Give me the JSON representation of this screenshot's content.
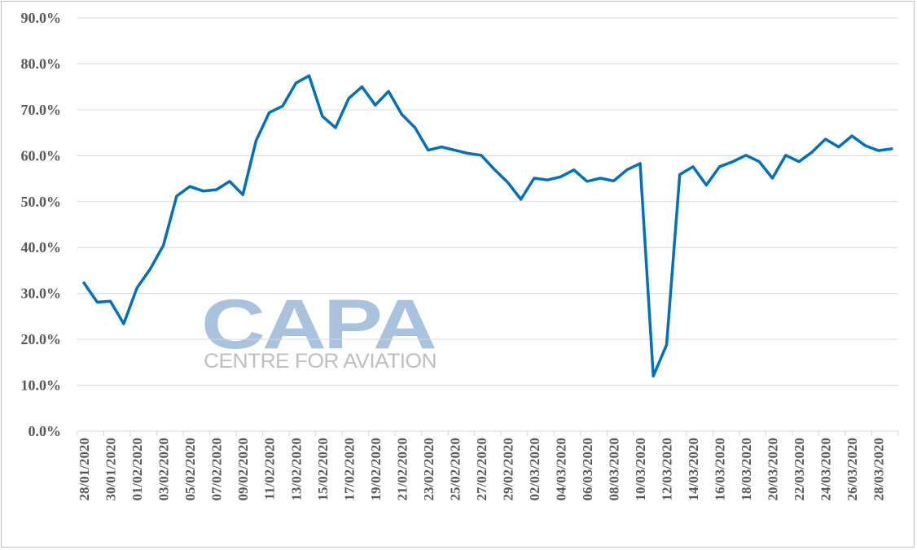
{
  "watermark": {
    "brand": "CAPA",
    "tagline": "CENTRE FOR AVIATION"
  },
  "chart_data": {
    "type": "line",
    "title": "",
    "xlabel": "",
    "ylabel": "",
    "ylim": [
      0,
      90
    ],
    "y_ticks": [
      "0.0%",
      "10.0%",
      "20.0%",
      "30.0%",
      "40.0%",
      "50.0%",
      "60.0%",
      "70.0%",
      "80.0%",
      "90.0%"
    ],
    "grid": "horizontal",
    "legend": "none",
    "line_color": "#0070c0",
    "x": [
      "28/01/2020",
      "29/01/2020",
      "30/01/2020",
      "31/01/2020",
      "01/02/2020",
      "02/02/2020",
      "03/02/2020",
      "04/02/2020",
      "05/02/2020",
      "06/02/2020",
      "07/02/2020",
      "08/02/2020",
      "09/02/2020",
      "10/02/2020",
      "11/02/2020",
      "12/02/2020",
      "13/02/2020",
      "14/02/2020",
      "15/02/2020",
      "16/02/2020",
      "17/02/2020",
      "18/02/2020",
      "19/02/2020",
      "20/02/2020",
      "21/02/2020",
      "22/02/2020",
      "23/02/2020",
      "24/02/2020",
      "25/02/2020",
      "26/02/2020",
      "27/02/2020",
      "28/02/2020",
      "29/02/2020",
      "01/03/2020",
      "02/03/2020",
      "03/03/2020",
      "04/03/2020",
      "05/03/2020",
      "06/03/2020",
      "07/03/2020",
      "08/03/2020",
      "09/03/2020",
      "10/03/2020",
      "11/03/2020",
      "12/03/2020",
      "13/03/2020",
      "14/03/2020",
      "15/03/2020",
      "16/03/2020",
      "17/03/2020",
      "18/03/2020",
      "19/03/2020",
      "20/03/2020",
      "21/03/2020",
      "22/03/2020",
      "23/03/2020",
      "24/03/2020",
      "25/03/2020",
      "26/03/2020",
      "27/03/2020",
      "28/03/2020",
      "29/03/2020"
    ],
    "x_tick_labels": [
      "28/01/2020",
      "30/01/2020",
      "01/02/2020",
      "03/02/2020",
      "05/02/2020",
      "07/02/2020",
      "09/02/2020",
      "11/02/2020",
      "13/02/2020",
      "15/02/2020",
      "17/02/2020",
      "19/02/2020",
      "21/02/2020",
      "23/02/2020",
      "25/02/2020",
      "27/02/2020",
      "29/02/2020",
      "02/03/2020",
      "04/03/2020",
      "06/03/2020",
      "08/03/2020",
      "10/03/2020",
      "12/03/2020",
      "14/03/2020",
      "16/03/2020",
      "18/03/2020",
      "20/03/2020",
      "22/03/2020",
      "24/03/2020",
      "26/03/2020",
      "28/03/2020"
    ],
    "series": [
      {
        "values": [
          32.3,
          28.1,
          28.3,
          23.4,
          31.2,
          35.3,
          40.5,
          51.2,
          53.3,
          52.3,
          52.6,
          54.4,
          51.5,
          63.3,
          69.4,
          70.8,
          75.8,
          77.4,
          68.6,
          66.1,
          72.5,
          75.0,
          71.0,
          74.0,
          69.0,
          66.1,
          61.2,
          61.9,
          61.2,
          60.5,
          60.1,
          57.0,
          54.2,
          50.5,
          55.1,
          54.7,
          55.4,
          56.9,
          54.4,
          55.1,
          54.5,
          56.9,
          58.3,
          12.0,
          18.8,
          55.9,
          57.6,
          53.6,
          57.6,
          58.7,
          60.1,
          58.7,
          55.1,
          60.1,
          58.7,
          60.8,
          63.6,
          61.9,
          64.3,
          62.2,
          61.1,
          61.5
        ]
      }
    ]
  }
}
